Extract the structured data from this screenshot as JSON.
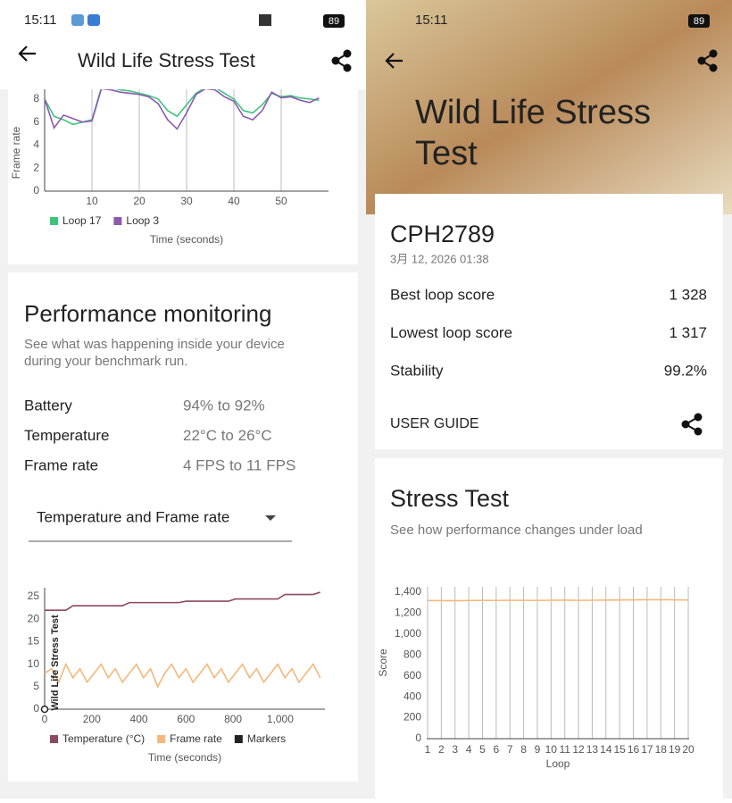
{
  "left": {
    "status": {
      "time": "15:11",
      "battery": "89"
    },
    "header": {
      "title": "Wild Life Stress Test"
    },
    "loop_chart": {
      "type": "line",
      "y_label": "Frame rate",
      "x_label": "Time (seconds)",
      "x": [
        0,
        2,
        4,
        6,
        8,
        10,
        12,
        14,
        16,
        18,
        20,
        22,
        24,
        26,
        28,
        30,
        32,
        34,
        36,
        38,
        40,
        42,
        44,
        46,
        48,
        50,
        52,
        54,
        56,
        58
      ],
      "series": [
        {
          "name": "Loop 17",
          "color": "#3cc47c",
          "values": [
            8,
            6.5,
            6.2,
            5.8,
            6,
            6.2,
            9,
            9,
            8.8,
            8.7,
            8.5,
            8.3,
            8,
            7,
            6.5,
            7.5,
            8.5,
            9,
            9,
            8.5,
            8,
            7,
            6.8,
            7.5,
            8.5,
            8.2,
            8.3,
            8.1,
            8,
            7.9
          ]
        },
        {
          "name": "Loop 3",
          "color": "#8e5ab0",
          "values": [
            8,
            5.5,
            6.6,
            6.3,
            6,
            6.1,
            8.9,
            8.8,
            8.6,
            8.5,
            8.4,
            8.2,
            7.6,
            6.2,
            5.4,
            6.8,
            8.4,
            8.9,
            8.8,
            8.2,
            7.8,
            6.5,
            6.2,
            7,
            8.6,
            8.1,
            8.2,
            7.9,
            7.7,
            8.1
          ]
        }
      ],
      "xlim": [
        0,
        60
      ],
      "ylim": [
        0,
        9
      ],
      "xticks": [
        10,
        20,
        30,
        40,
        50
      ],
      "yticks": [
        0,
        2,
        4,
        6,
        8
      ]
    },
    "performance": {
      "title": "Performance monitoring",
      "description": [
        "See what was happening inside your device",
        "during your benchmark run."
      ],
      "rows": [
        [
          "Battery",
          "94% to 92%"
        ],
        [
          "Temperature",
          "22°C to 26°C"
        ],
        [
          "Frame rate",
          "4 FPS to 11 FPS"
        ]
      ],
      "dropdown": "Temperature and Frame rate"
    },
    "monitor_chart": {
      "type": "line",
      "x_label": "Time (seconds)",
      "x": [
        0,
        30,
        60,
        90,
        120,
        150,
        180,
        210,
        240,
        270,
        300,
        330,
        360,
        390,
        420,
        450,
        480,
        510,
        540,
        570,
        600,
        630,
        660,
        690,
        720,
        750,
        780,
        810,
        840,
        870,
        900,
        930,
        960,
        990,
        1020,
        1050,
        1080,
        1110,
        1140,
        1170
      ],
      "series": [
        {
          "name": "Temperature (°C)",
          "color": "#8b4a5e",
          "values": [
            22,
            22,
            22,
            22,
            23,
            23,
            23,
            23,
            23,
            23,
            23,
            23,
            23.7,
            23.7,
            23.7,
            23.7,
            23.7,
            23.7,
            23.7,
            23.7,
            24,
            24,
            24,
            24,
            24,
            24,
            24,
            24.5,
            24.5,
            24.5,
            24.5,
            24.5,
            24.5,
            24.5,
            25.5,
            25.5,
            25.5,
            25.5,
            25.5,
            26
          ]
        },
        {
          "name": "Frame rate",
          "color": "#f5b77a",
          "values": [
            8,
            9,
            6,
            10,
            7,
            9,
            6,
            8,
            10,
            7,
            9,
            6,
            8,
            10,
            7,
            9,
            5,
            8,
            10,
            7,
            9,
            6,
            8,
            10,
            7,
            9,
            6,
            8,
            10,
            7,
            9,
            6,
            8,
            10,
            7,
            9,
            6,
            8,
            10,
            7
          ]
        }
      ],
      "markers": {
        "name": "Markers",
        "color": "#222222",
        "points": [
          {
            "x": 0,
            "label": "Wild Life Stress Test"
          }
        ]
      },
      "xlim": [
        0,
        1190
      ],
      "ylim": [
        0,
        27
      ],
      "xticks": [
        0,
        200,
        400,
        600,
        800,
        {
          "value": 1000,
          "label": "1,000"
        }
      ],
      "yticks": [
        0,
        5,
        10,
        15,
        20,
        25
      ]
    }
  },
  "right": {
    "status": {
      "time": "15:11",
      "battery": "89"
    },
    "hero": {
      "title": [
        "Wild Life Stress",
        "Test"
      ]
    },
    "result": {
      "device": "CPH2789",
      "date": "3月 12, 2026 01:38",
      "rows": [
        [
          "Best loop score",
          "1 328"
        ],
        [
          "Lowest loop score",
          "1 317"
        ],
        [
          "Stability",
          "99.2%"
        ]
      ],
      "link": "USER GUIDE"
    },
    "stress": {
      "title": "Stress Test",
      "description": "See how performance changes under load",
      "chart": {
        "type": "line",
        "x_label": "Loop",
        "y_label": "Score",
        "categories": [
          "1",
          "2",
          "3",
          "4",
          "5",
          "6",
          "7",
          "8",
          "9",
          "10",
          "11",
          "12",
          "13",
          "14",
          "15",
          "16",
          "17",
          "18",
          "19",
          "20"
        ],
        "series": [
          {
            "name": "Score",
            "color": "#f5b77a",
            "values": [
              1320,
              1318,
              1317,
              1319,
              1321,
              1320,
              1322,
              1321,
              1320,
              1322,
              1323,
              1321,
              1322,
              1324,
              1325,
              1326,
              1327,
              1328,
              1326,
              1324
            ]
          }
        ],
        "ylim": [
          0,
          1450
        ],
        "yticks": [
          0,
          200,
          400,
          600,
          800,
          {
            "value": 1000,
            "label": "1,000"
          },
          {
            "value": 1200,
            "label": "1,200"
          },
          {
            "value": 1400,
            "label": "1,400"
          }
        ]
      }
    }
  }
}
